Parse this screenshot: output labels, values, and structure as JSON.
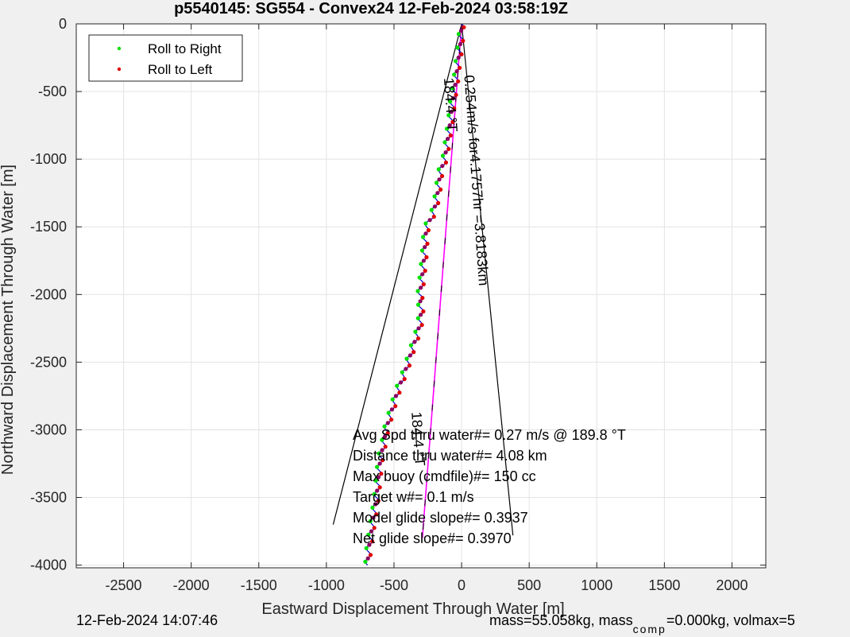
{
  "footer": {
    "timestamp": "12-Feb-2024 14:07:46",
    "mass_part1": "mass=55.058kg, mass",
    "mass_sub": "comp",
    "mass_part2": "=0.000kg, volmax=5"
  },
  "chart_data": {
    "type": "line",
    "title": "p5540145: SG554 - Convex24 12-Feb-2024 03:58:19Z",
    "xlabel": "Eastward Displacement Through Water [m]",
    "ylabel": "Northward Displacement Through Water [m]",
    "xlim": [
      -2850,
      2250
    ],
    "ylim": [
      -4020,
      0
    ],
    "xticks": [
      -2500,
      -2000,
      -1500,
      -1000,
      -500,
      0,
      500,
      1000,
      1500,
      2000
    ],
    "yticks": [
      0,
      -500,
      -1000,
      -1500,
      -2000,
      -2500,
      -3000,
      -3500,
      -4000
    ],
    "grid": true,
    "legend": {
      "placement": "top-left",
      "entries": [
        {
          "label": "Roll to Right",
          "color": "#00e000"
        },
        {
          "label": "Roll to Left",
          "color": "#e00000"
        }
      ]
    },
    "series": [
      {
        "color": "#0000cc",
        "points": [
          [
            0,
            0
          ],
          [
            -5,
            -100
          ],
          [
            -15,
            -200
          ],
          [
            -30,
            -300
          ],
          [
            -40,
            -400
          ],
          [
            -55,
            -500
          ],
          [
            -70,
            -600
          ],
          [
            -80,
            -700
          ],
          [
            -95,
            -800
          ],
          [
            -110,
            -900
          ],
          [
            -125,
            -1000
          ],
          [
            -160,
            -1100
          ],
          [
            -170,
            -1200
          ],
          [
            -185,
            -1300
          ],
          [
            -210,
            -1400
          ],
          [
            -260,
            -1500
          ],
          [
            -270,
            -1600
          ],
          [
            -275,
            -1700
          ],
          [
            -285,
            -1800
          ],
          [
            -295,
            -1900
          ],
          [
            -310,
            -2000
          ],
          [
            -300,
            -2100
          ],
          [
            -305,
            -2200
          ],
          [
            -330,
            -2300
          ],
          [
            -365,
            -2400
          ],
          [
            -395,
            -2500
          ],
          [
            -430,
            -2600
          ],
          [
            -470,
            -2700
          ],
          [
            -500,
            -2800
          ],
          [
            -530,
            -2900
          ],
          [
            -560,
            -3000
          ],
          [
            -575,
            -3100
          ],
          [
            -600,
            -3200
          ],
          [
            -610,
            -3300
          ],
          [
            -620,
            -3400
          ],
          [
            -630,
            -3500
          ],
          [
            -645,
            -3600
          ],
          [
            -660,
            -3700
          ],
          [
            -675,
            -3800
          ],
          [
            -690,
            -3900
          ],
          [
            -695,
            -4000
          ]
        ]
      },
      {
        "color": "#ff00ff",
        "points": [
          [
            0,
            0
          ],
          [
            -290,
            -3800
          ]
        ]
      }
    ],
    "lines": [
      {
        "color": "#000000",
        "points": [
          [
            0,
            0
          ],
          [
            -950,
            -3700
          ]
        ]
      },
      {
        "color": "#000000",
        "points": [
          [
            0,
            0
          ],
          [
            380,
            -3780
          ]
        ]
      }
    ],
    "annotations": [
      {
        "text": "184.4 °T",
        "x": -130,
        "y": -400,
        "angle": 86
      },
      {
        "text": "0.254m/s for4.1757hr =3.8183km",
        "x": 20,
        "y": -380,
        "angle": 86
      },
      {
        "text": "184.4 °T",
        "x": -370,
        "y": -2870,
        "angle": 86
      }
    ],
    "stats": [
      "Avg Spd thru water#=  0.27 m/s @ 189.8       °T",
      "Distance thru water#=  4.08 km",
      "Max buoy (cmdfile)#= 150 cc",
      "Target w#= 0.1 m/s",
      "Model glide slope#= 0.3937",
      "Net glide slope#= 0.3970"
    ]
  }
}
